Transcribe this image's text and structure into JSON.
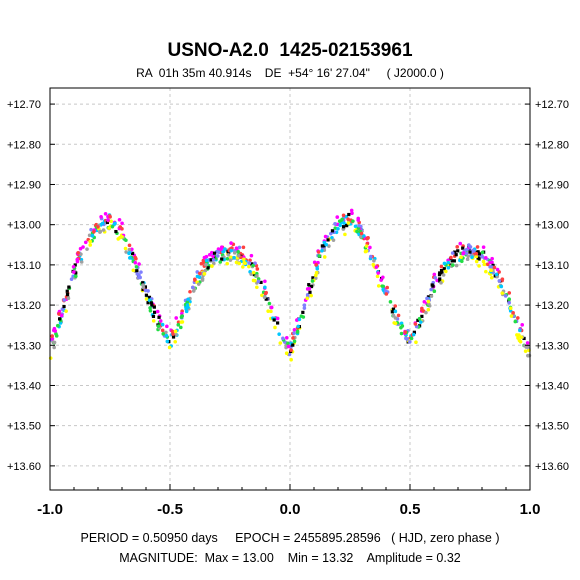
{
  "title": "USNO-A2.0  1425-02153961",
  "subtitle": "RA  01h 35m 40.914s    DE  +54° 16' 27.04\"     ( J2000.0 )",
  "footer": {
    "line1": "PERIOD = 0.50950 days     EPOCH = 2455895.28596   ( HJD, zero phase )",
    "line2": "MAGNITUDE:  Max = 13.00    Min = 13.32    Amplitude = 0.32"
  },
  "colors": {
    "series": [
      "#ffff00",
      "#000000",
      "#ff00ff",
      "#00c8ff",
      "#22dd44",
      "#7f7fff",
      "#a0a0a0",
      "#ff4040"
    ],
    "grid": "#c8c8c8",
    "axis": "#000000"
  },
  "chart_data": {
    "type": "scatter",
    "title": "USNO-A2.0  1425-02153961",
    "xlabel": "",
    "ylabel": "",
    "xlim": [
      -1.0,
      1.0
    ],
    "ylim": [
      13.66,
      12.66
    ],
    "y_inverted": true,
    "grid": true,
    "legend": "none",
    "x_ticks": [
      -1.0,
      -0.5,
      0.0,
      0.5,
      1.0
    ],
    "x_tick_labels": [
      "-1.0",
      "-0.5",
      "0.0",
      "0.5",
      "1.0"
    ],
    "y_ticks": [
      12.7,
      12.8,
      12.9,
      13.0,
      13.1,
      13.2,
      13.3,
      13.4,
      13.5,
      13.6
    ],
    "y_tick_labels": [
      "+12.70",
      "+12.80",
      "+12.90",
      "+13.00",
      "+13.10",
      "+13.20",
      "+13.30",
      "+13.40",
      "+13.50",
      "+13.60"
    ],
    "light_curve": {
      "phase": [
        0.0,
        0.05,
        0.1,
        0.15,
        0.2,
        0.25,
        0.3,
        0.35,
        0.4,
        0.45,
        0.5,
        0.55,
        0.6,
        0.65,
        0.7,
        0.75,
        0.8,
        0.85,
        0.9,
        0.95,
        1.0
      ],
      "magnitude": [
        13.315,
        13.22,
        13.12,
        13.04,
        13.0,
        12.985,
        13.02,
        13.09,
        13.17,
        13.24,
        13.29,
        13.23,
        13.15,
        13.1,
        13.075,
        13.065,
        13.075,
        13.11,
        13.17,
        13.25,
        13.315
      ]
    },
    "period_days": 0.5095,
    "epoch_hjd": 2455895.28596,
    "mag_max": 13.0,
    "mag_min": 13.32,
    "amplitude": 0.32
  }
}
